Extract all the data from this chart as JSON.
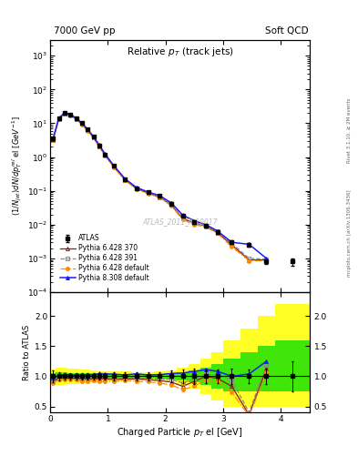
{
  "title_left": "7000 GeV pp",
  "title_right": "Soft QCD",
  "plot_title": "Relative p_{T} (track jets)",
  "xlabel": "Charged Particle p$_T$ el [GeV]",
  "ylabel_main": "(1/Njet)dN/dp$^{rel}_T$ el [GeV$^{-1}$]",
  "ylabel_ratio": "Ratio to ATLAS",
  "watermark": "ATLAS_2011_I919017",
  "right_label_top": "Rivet 3.1.10, ≥ 2M events",
  "right_label_bot": "mcplots.cern.ch [arXiv:1306.3436]",
  "xlim": [
    0,
    4.5
  ],
  "ylim_main": [
    0.0001,
    3000.0
  ],
  "ylim_ratio": [
    0.4,
    2.4
  ],
  "atlas_x": [
    0.05,
    0.15,
    0.25,
    0.35,
    0.45,
    0.55,
    0.65,
    0.75,
    0.85,
    0.95,
    1.1,
    1.3,
    1.5,
    1.7,
    1.9,
    2.1,
    2.3,
    2.5,
    2.7,
    2.9,
    3.15,
    3.45,
    3.75,
    4.2
  ],
  "atlas_y": [
    3.5,
    14.0,
    20.0,
    18.0,
    14.0,
    10.0,
    6.5,
    4.0,
    2.2,
    1.2,
    0.55,
    0.22,
    0.12,
    0.09,
    0.07,
    0.042,
    0.018,
    0.012,
    0.009,
    0.006,
    0.003,
    0.0025,
    0.0008,
    0.0008
  ],
  "atlas_yerr": [
    0.35,
    1.0,
    1.2,
    1.0,
    0.8,
    0.5,
    0.35,
    0.22,
    0.12,
    0.07,
    0.035,
    0.015,
    0.008,
    0.006,
    0.005,
    0.004,
    0.002,
    0.0015,
    0.001,
    0.0007,
    0.0004,
    0.0003,
    0.0001,
    0.0002
  ],
  "py6_370_x": [
    0.05,
    0.15,
    0.25,
    0.35,
    0.45,
    0.55,
    0.65,
    0.75,
    0.85,
    0.95,
    1.1,
    1.3,
    1.5,
    1.7,
    1.9,
    2.1,
    2.3,
    2.5,
    2.7,
    2.9,
    3.15,
    3.45,
    3.75
  ],
  "py6_370_y": [
    3.2,
    13.5,
    19.5,
    17.5,
    13.5,
    9.5,
    6.2,
    3.8,
    2.1,
    1.15,
    0.52,
    0.21,
    0.115,
    0.085,
    0.065,
    0.038,
    0.015,
    0.011,
    0.009,
    0.0058,
    0.0025,
    0.0009,
    0.0009
  ],
  "py6_391_x": [
    0.05,
    0.15,
    0.25,
    0.35,
    0.45,
    0.55,
    0.65,
    0.75,
    0.85,
    0.95,
    1.1,
    1.3,
    1.5,
    1.7,
    1.9,
    2.1,
    2.3,
    2.5,
    2.7,
    2.9,
    3.15,
    3.45,
    3.75
  ],
  "py6_391_y": [
    3.3,
    13.8,
    19.8,
    17.8,
    13.8,
    9.8,
    6.3,
    3.9,
    2.15,
    1.18,
    0.53,
    0.215,
    0.118,
    0.087,
    0.067,
    0.04,
    0.016,
    0.0115,
    0.0092,
    0.0062,
    0.0028,
    0.001,
    0.00095
  ],
  "py6_def_x": [
    0.05,
    0.15,
    0.25,
    0.35,
    0.45,
    0.55,
    0.65,
    0.75,
    0.85,
    0.95,
    1.1,
    1.3,
    1.5,
    1.7,
    1.9,
    2.1,
    2.3,
    2.5,
    2.7,
    2.9,
    3.15,
    3.45,
    3.75
  ],
  "py6_def_y": [
    3.1,
    13.2,
    19.0,
    17.0,
    13.2,
    9.2,
    6.0,
    3.7,
    2.0,
    1.1,
    0.5,
    0.205,
    0.11,
    0.082,
    0.062,
    0.036,
    0.014,
    0.01,
    0.0085,
    0.0055,
    0.0022,
    0.00085,
    0.00085
  ],
  "py8_def_x": [
    0.05,
    0.15,
    0.25,
    0.35,
    0.45,
    0.55,
    0.65,
    0.75,
    0.85,
    0.95,
    1.1,
    1.3,
    1.5,
    1.7,
    1.9,
    2.1,
    2.3,
    2.5,
    2.7,
    2.9,
    3.15,
    3.45,
    3.75
  ],
  "py8_def_y": [
    3.4,
    14.2,
    20.5,
    18.5,
    14.2,
    10.2,
    6.6,
    4.1,
    2.3,
    1.25,
    0.57,
    0.225,
    0.125,
    0.092,
    0.072,
    0.044,
    0.019,
    0.013,
    0.01,
    0.0065,
    0.003,
    0.0026,
    0.001
  ],
  "color_atlas": "#000000",
  "color_py6_370": "#8b1a1a",
  "color_py6_391": "#888888",
  "color_py6_def": "#ff8c00",
  "color_py8_def": "#1a1aff",
  "band_yellow": "#ffff00",
  "band_green": "#00dd00",
  "ratio_band_edges": [
    0.0,
    0.1,
    0.2,
    0.3,
    0.4,
    0.5,
    0.6,
    0.7,
    0.8,
    0.9,
    1.0,
    1.2,
    1.4,
    1.6,
    1.8,
    2.0,
    2.2,
    2.4,
    2.6,
    2.8,
    3.0,
    3.3,
    3.6,
    3.9,
    4.5
  ],
  "ratio_band_yellow_hi": [
    1.12,
    1.14,
    1.14,
    1.13,
    1.13,
    1.12,
    1.11,
    1.1,
    1.09,
    1.09,
    1.08,
    1.08,
    1.07,
    1.07,
    1.08,
    1.1,
    1.15,
    1.2,
    1.3,
    1.4,
    1.6,
    1.8,
    2.0,
    2.2
  ],
  "ratio_band_yellow_lo": [
    0.88,
    0.86,
    0.86,
    0.87,
    0.87,
    0.88,
    0.89,
    0.9,
    0.91,
    0.91,
    0.92,
    0.92,
    0.93,
    0.93,
    0.92,
    0.9,
    0.85,
    0.8,
    0.7,
    0.6,
    0.5,
    0.5,
    0.5,
    0.5
  ],
  "ratio_band_green_hi": [
    1.06,
    1.07,
    1.07,
    1.06,
    1.06,
    1.06,
    1.05,
    1.05,
    1.04,
    1.04,
    1.04,
    1.04,
    1.04,
    1.04,
    1.04,
    1.05,
    1.07,
    1.1,
    1.15,
    1.2,
    1.3,
    1.4,
    1.5,
    1.6
  ],
  "ratio_band_green_lo": [
    0.94,
    0.93,
    0.93,
    0.94,
    0.94,
    0.94,
    0.95,
    0.95,
    0.96,
    0.96,
    0.96,
    0.96,
    0.96,
    0.96,
    0.96,
    0.95,
    0.93,
    0.9,
    0.85,
    0.8,
    0.75,
    0.75,
    0.75,
    0.75
  ]
}
